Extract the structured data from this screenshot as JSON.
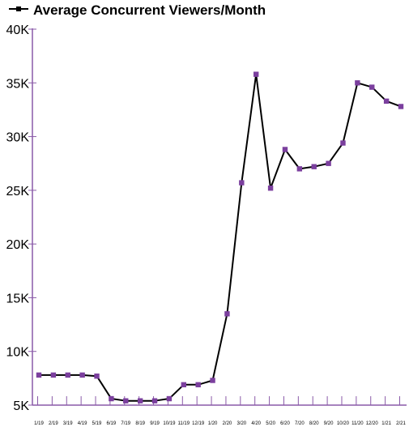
{
  "chart_data": {
    "type": "line",
    "title": "",
    "xlabel": "",
    "ylabel": "",
    "legend": {
      "placement": "top-left",
      "label": "Average Concurrent Viewers/Month"
    },
    "grid": false,
    "ylim": [
      5000,
      40000
    ],
    "yticks": [
      {
        "value": 5000,
        "label": "5K"
      },
      {
        "value": 10000,
        "label": "10K"
      },
      {
        "value": 15000,
        "label": "15K"
      },
      {
        "value": 20000,
        "label": "20K"
      },
      {
        "value": 25000,
        "label": "25K"
      },
      {
        "value": 30000,
        "label": "30K"
      },
      {
        "value": 35000,
        "label": "35K"
      },
      {
        "value": 40000,
        "label": "40K"
      }
    ],
    "categories": [
      "1/19",
      "2/19",
      "3/19",
      "4/19",
      "5/19",
      "6/19",
      "7/19",
      "8/19",
      "9/19",
      "10/19",
      "11/19",
      "12/19",
      "1/20",
      "2/20",
      "3/20",
      "4/20",
      "5/20",
      "6/20",
      "7/20",
      "8/20",
      "9/20",
      "10/20",
      "11/20",
      "12/20",
      "1/21",
      "2/21"
    ],
    "series": [
      {
        "name": "Average Concurrent Viewers/Month",
        "values": [
          7800,
          7800,
          7800,
          7800,
          7700,
          5600,
          5400,
          5400,
          5400,
          5600,
          6900,
          6900,
          7300,
          13500,
          25700,
          35800,
          25200,
          28800,
          27000,
          27200,
          27500,
          29400,
          35000,
          34600,
          33300,
          32800
        ]
      }
    ],
    "colors": {
      "line": "#000000",
      "marker": "#7b3f9e",
      "axis": "#8a5aa8"
    }
  }
}
